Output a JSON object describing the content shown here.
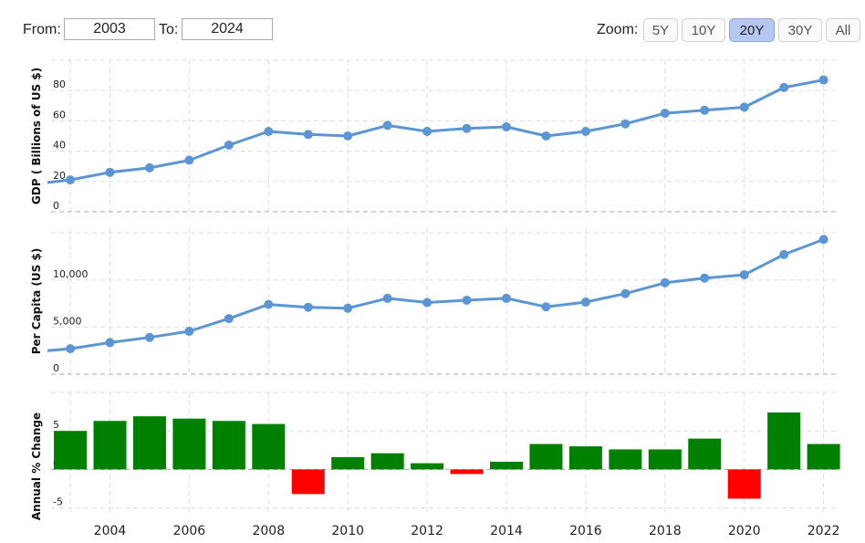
{
  "controls": {
    "from_label": "From:",
    "from_value": "2003",
    "to_label": "To:",
    "to_value": "2024",
    "zoom_label": "Zoom:",
    "zoom_buttons": [
      "5Y",
      "10Y",
      "20Y",
      "30Y",
      "All"
    ],
    "zoom_active": "20Y"
  },
  "colors": {
    "line": "#5b95d3",
    "bar_positive": "#008000",
    "bar_negative": "#ff0000"
  },
  "chart_data": [
    {
      "type": "line",
      "ylabel": "GDP ( Billions of US $)",
      "x": [
        2002,
        2003,
        2004,
        2005,
        2006,
        2007,
        2008,
        2009,
        2010,
        2011,
        2012,
        2013,
        2014,
        2015,
        2016,
        2017,
        2018,
        2019,
        2020,
        2021,
        2022
      ],
      "series": [
        {
          "values": [
            18,
            21,
            26,
            29,
            34,
            44,
            53,
            51,
            50,
            57,
            53,
            55,
            56,
            50,
            53,
            58,
            65,
            67,
            69,
            82,
            87
          ]
        }
      ],
      "yticks": [
        {
          "v": 0,
          "t": "0"
        },
        {
          "v": 20,
          "t": "20"
        },
        {
          "v": 40,
          "t": "40"
        },
        {
          "v": 60,
          "t": "60"
        },
        {
          "v": 80,
          "t": "80"
        }
      ],
      "ylim": [
        0,
        100
      ]
    },
    {
      "type": "line",
      "ylabel": "Per Capita (US $)",
      "x": [
        2002,
        2003,
        2004,
        2005,
        2006,
        2007,
        2008,
        2009,
        2010,
        2011,
        2012,
        2013,
        2014,
        2015,
        2016,
        2017,
        2018,
        2019,
        2020,
        2021,
        2022
      ],
      "series": [
        {
          "values": [
            2350,
            2700,
            3350,
            3900,
            4550,
            5900,
            7400,
            7100,
            7000,
            8050,
            7600,
            7850,
            8050,
            7150,
            7650,
            8550,
            9700,
            10200,
            10550,
            12700,
            14300
          ]
        }
      ],
      "yticks": [
        {
          "v": 0,
          "t": "0"
        },
        {
          "v": 5000,
          "t": "5,000"
        },
        {
          "v": 10000,
          "t": "10,000"
        }
      ],
      "ylim": [
        0,
        15500
      ]
    },
    {
      "type": "bar",
      "ylabel": "Annual % Change",
      "x": [
        2003,
        2004,
        2005,
        2006,
        2007,
        2008,
        2009,
        2010,
        2011,
        2012,
        2013,
        2014,
        2015,
        2016,
        2017,
        2018,
        2019,
        2020,
        2021,
        2022
      ],
      "values": [
        5.0,
        6.3,
        6.9,
        6.6,
        6.3,
        5.9,
        -3.2,
        1.6,
        2.1,
        0.8,
        -0.6,
        1.0,
        3.3,
        3.0,
        2.6,
        2.6,
        4.0,
        -3.8,
        7.4,
        3.3
      ],
      "yticks": [
        {
          "v": -5,
          "t": "-5"
        },
        {
          "v": 0,
          "t": "0"
        },
        {
          "v": 5,
          "t": "5"
        }
      ],
      "ylim": [
        -6,
        10
      ],
      "xticks": [
        "2004",
        "2006",
        "2008",
        "2010",
        "2012",
        "2014",
        "2016",
        "2018",
        "2020",
        "2022"
      ]
    }
  ]
}
